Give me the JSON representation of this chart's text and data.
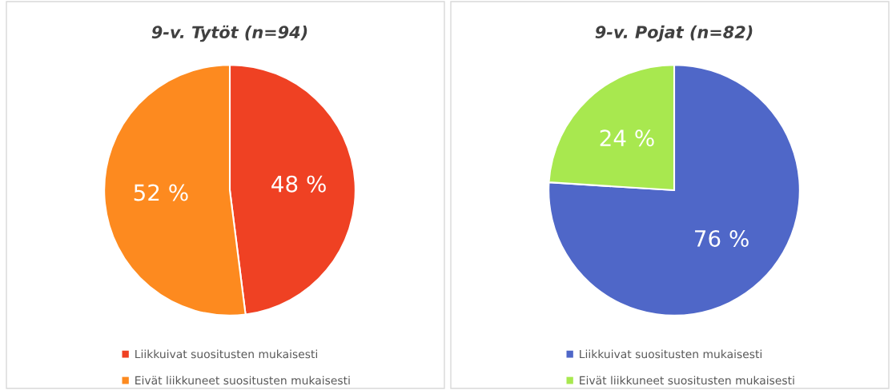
{
  "chart_data": [
    {
      "type": "pie",
      "title": "9-v. Tytöt (n=94)",
      "categories": [
        "Liikkuivat suositusten mukaisesti",
        "Eivät liikkuneet suositusten mukaisesti"
      ],
      "values": [
        48,
        52
      ],
      "colors": [
        "#ef4123",
        "#fd8a1f"
      ],
      "value_labels": [
        "48 %",
        "52 %"
      ],
      "legend": "bottom"
    },
    {
      "type": "pie",
      "title": "9-v. Pojat (n=82)",
      "categories": [
        "Liikkuivat suositusten mukaisesti",
        "Eivät liikkuneet suositusten mukaisesti"
      ],
      "values": [
        76,
        24
      ],
      "colors": [
        "#4f67c8",
        "#a8e84f"
      ],
      "value_labels": [
        "76 %",
        "24 %"
      ],
      "legend": "bottom"
    }
  ]
}
